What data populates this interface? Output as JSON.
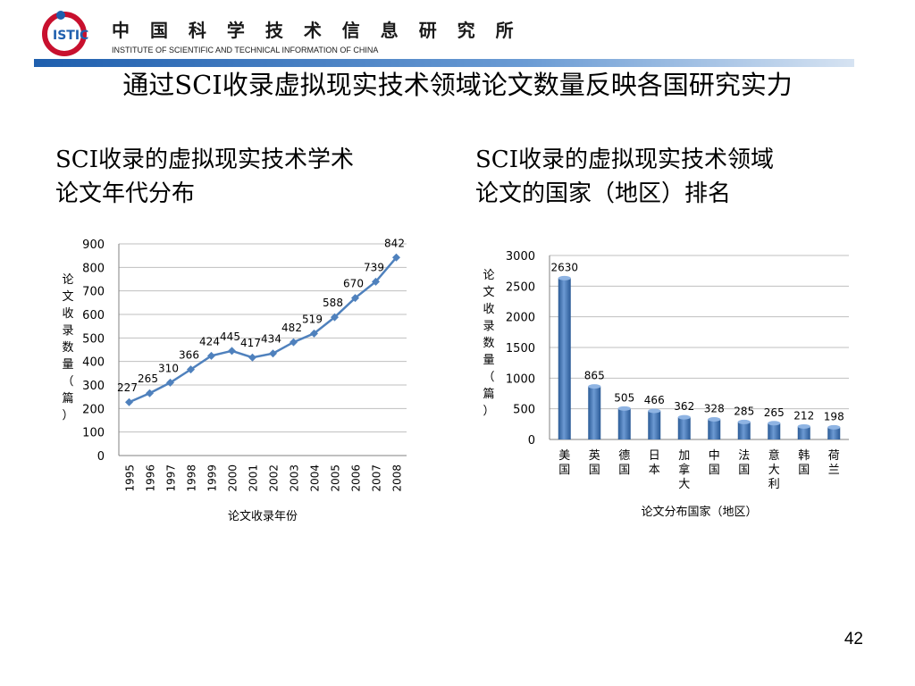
{
  "header": {
    "logo_text": "ISTIC",
    "org_name_cn": "中 国 科 学 技 术 信 息 研 究 所",
    "org_name_en": "INSTITUTE OF SCIENTIFIC AND TECHNICAL INFORMATION OF CHINA"
  },
  "slide": {
    "title": "通过SCI收录虚拟现实技术领域论文数量反映各国研究实力",
    "page_number": "42"
  },
  "left": {
    "subtitle_line1": "SCI收录的虚拟现实技术学术",
    "subtitle_line2": "论文年代分布"
  },
  "right": {
    "subtitle_line1": "SCI收录的虚拟现实技术领域",
    "subtitle_line2": "论文的国家（地区）排名"
  },
  "colors": {
    "header_bar": "#1f5fae",
    "line": "#4f81bd",
    "bar": "#4a7ebb",
    "logo_red": "#c8102e"
  },
  "chart_data": [
    {
      "type": "line",
      "x": [
        "1995",
        "1996",
        "1997",
        "1998",
        "1999",
        "2000",
        "2001",
        "2002",
        "2003",
        "2004",
        "2005",
        "2006",
        "2007",
        "2008"
      ],
      "values": [
        227,
        265,
        310,
        366,
        424,
        445,
        417,
        434,
        482,
        519,
        588,
        670,
        739,
        842
      ],
      "xlabel": "论文收录年份",
      "ylabel": "论文收录数量（篇）",
      "ylim": [
        0,
        900
      ],
      "yticks": [
        0,
        100,
        200,
        300,
        400,
        500,
        600,
        700,
        800,
        900
      ],
      "grid": true,
      "marker": "diamond"
    },
    {
      "type": "bar",
      "categories": [
        "美国",
        "英国",
        "德国",
        "日本",
        "加拿大",
        "中国",
        "法国",
        "意大利",
        "韩国",
        "荷兰"
      ],
      "values": [
        2630,
        865,
        505,
        466,
        362,
        328,
        285,
        265,
        212,
        198
      ],
      "xlabel": "论文分布国家（地区）",
      "ylabel": "论文收录数量（篇）",
      "ylim": [
        0,
        3000
      ],
      "yticks": [
        0,
        500,
        1000,
        1500,
        2000,
        2500,
        3000
      ],
      "grid": true,
      "style": "3d-cylinder"
    }
  ]
}
